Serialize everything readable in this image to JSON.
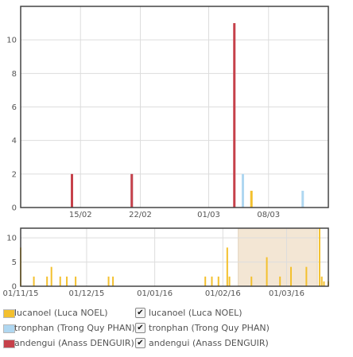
{
  "chart_data": [
    {
      "type": "bar",
      "x_unit": "date",
      "xlim": [
        "2016-02-08",
        "2016-03-15"
      ],
      "ylim": [
        0,
        12
      ],
      "grid": true,
      "x_ticks": [
        "15/02",
        "22/02",
        "01/03",
        "08/03"
      ],
      "x_tick_dates": [
        "2016-02-15",
        "2016-02-22",
        "2016-03-01",
        "2016-03-08"
      ],
      "y_ticks": [
        0,
        2,
        4,
        6,
        8,
        10
      ],
      "series": [
        {
          "name": "lucanoel (Luca NOEL)",
          "color": "#f3c02e",
          "points": [
            {
              "x": "2016-03-06",
              "y": 1
            }
          ]
        },
        {
          "name": "tronphan (Trong Quy PHAN)",
          "color": "#afd7f1",
          "points": [
            {
              "x": "2016-02-21",
              "y": 2
            },
            {
              "x": "2016-03-05",
              "y": 2
            },
            {
              "x": "2016-03-12",
              "y": 1
            }
          ]
        },
        {
          "name": "andengui (Anass DENGUIR)",
          "color": "#c6414a",
          "points": [
            {
              "x": "2016-02-14",
              "y": 2
            },
            {
              "x": "2016-02-21",
              "y": 2
            },
            {
              "x": "2016-03-04",
              "y": 11
            }
          ]
        }
      ]
    },
    {
      "type": "bar",
      "x_unit": "date",
      "xlim": [
        "2015-11-01",
        "2016-03-20"
      ],
      "ylim": [
        0,
        12
      ],
      "grid": true,
      "selection": [
        "2016-02-08",
        "2016-03-15"
      ],
      "x_ticks": [
        "01/11/15",
        "01/12/15",
        "01/01/16",
        "01/02/16",
        "01/03/16"
      ],
      "x_tick_dates": [
        "2015-11-01",
        "2015-12-01",
        "2016-01-01",
        "2016-02-01",
        "2016-03-01"
      ],
      "y_ticks": [
        0,
        5,
        10
      ],
      "points": [
        {
          "x": "2015-11-01",
          "y": 8
        },
        {
          "x": "2015-11-07",
          "y": 2
        },
        {
          "x": "2015-11-13",
          "y": 2
        },
        {
          "x": "2015-11-15",
          "y": 4
        },
        {
          "x": "2015-11-19",
          "y": 2
        },
        {
          "x": "2015-11-22",
          "y": 2
        },
        {
          "x": "2015-11-26",
          "y": 2
        },
        {
          "x": "2015-12-11",
          "y": 2
        },
        {
          "x": "2015-12-13",
          "y": 2
        },
        {
          "x": "2016-01-24",
          "y": 2
        },
        {
          "x": "2016-01-27",
          "y": 2
        },
        {
          "x": "2016-01-30",
          "y": 2
        },
        {
          "x": "2016-02-03",
          "y": 8
        },
        {
          "x": "2016-02-04",
          "y": 2
        },
        {
          "x": "2016-02-14",
          "y": 2
        },
        {
          "x": "2016-02-21",
          "y": 6
        },
        {
          "x": "2016-02-27",
          "y": 2
        },
        {
          "x": "2016-03-03",
          "y": 4
        },
        {
          "x": "2016-03-10",
          "y": 4
        },
        {
          "x": "2016-03-16",
          "y": 12
        },
        {
          "x": "2016-03-17",
          "y": 2
        },
        {
          "x": "2016-03-18",
          "y": 1
        },
        {
          "x": "2016-03-20",
          "y": 1
        }
      ]
    }
  ],
  "legend": [
    {
      "label": "lucanoel (Luca NOEL)",
      "color": "#f3c02e",
      "check": "✔"
    },
    {
      "label": "tronphan (Trong Quy PHAN)",
      "color": "#afd7f1",
      "check": "✔"
    },
    {
      "label": "andengui (Anass DENGUIR)",
      "color": "#c6414a",
      "check": "✔"
    }
  ],
  "colors": {
    "overview_bar": "#f3c02e",
    "selection_fill": "#f3e6d4",
    "frame": "#444444",
    "grid": "#dddddd"
  }
}
